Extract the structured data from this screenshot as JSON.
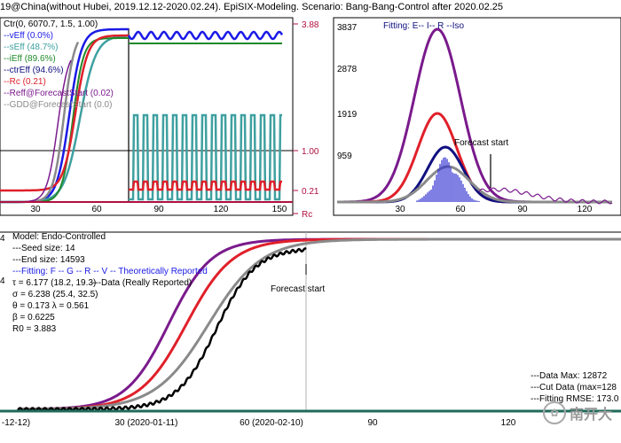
{
  "title": "19@China(without Hubei, 2019.12.12-2020.02.24). EpiSIX-Modeling. Scenario: Bang-Bang-Control after 2020.02.25",
  "colors": {
    "blue": "#1a1ae6",
    "teal": "#3fa0a0",
    "green": "#1f8a2a",
    "red": "#e0202a",
    "purple": "#7a1a8c",
    "gray": "#8a8a8a",
    "navy": "#101080",
    "black": "#000000",
    "darkred": "#b01040"
  },
  "panel1": {
    "legend": [
      {
        "text": "Ctr(0, 6070.7, 1.5, 1.00)",
        "color": "#000000"
      },
      {
        "text": "--vEff (0.0%)",
        "color": "#1a1ae6"
      },
      {
        "text": "--sEff (48.7%)",
        "color": "#3fa0a0"
      },
      {
        "text": "--iEff (89.6%)",
        "color": "#1f8a2a"
      },
      {
        "text": "--ctrEff (94.6%)",
        "color": "#101080"
      },
      {
        "text": "--Rc (0.21)",
        "color": "#e0202a"
      },
      {
        "text": "--Reff@ForecastStart (0.02)",
        "color": "#7a1a8c"
      },
      {
        "text": "--GDD@ForecastStart (0.0)",
        "color": "#8a8a8a"
      }
    ],
    "right_ticks": [
      "3.88",
      "1.00",
      "0.21",
      "Rc"
    ],
    "x_ticks": [
      "30",
      "60",
      "90",
      "120",
      "150"
    ]
  },
  "panel2": {
    "y_ticks": [
      "3837",
      "2878",
      "1919",
      "959"
    ],
    "x_ticks": [
      "30",
      "60",
      "90",
      "120"
    ],
    "legend": "Fitting: E-- I-- R --Iso",
    "annotation": "Forecast start"
  },
  "panel3": {
    "model": "Model: Endo-Controlled",
    "info_lines": [
      "---Seed size: 14",
      "---End size: 14593"
    ],
    "fitting_legend": "---Fitting: F -- G -- R -- V -- Theoretically Reported",
    "data_legend": "---Data (Really Reported)",
    "params": [
      "τ = 6.177 (18.2, 19.3)",
      "σ = 6.238 (25.4, 32.5)",
      "θ = 0.173   λ = 0.561",
      "β = 0.6225",
      "R0 = 3.883"
    ],
    "annotation": "Forecast start",
    "right_info": [
      "---Data Max: 12872",
      "---Cut Data (max=128",
      "---Fitting RMSE: 173.0"
    ],
    "x_ticks": [
      "-12-12)",
      "30 (2020-01-11)",
      "60 (2020-02-10)",
      "90",
      "120"
    ],
    "y_label_fragments": [
      "4",
      "4"
    ]
  },
  "watermark": "南开大"
}
